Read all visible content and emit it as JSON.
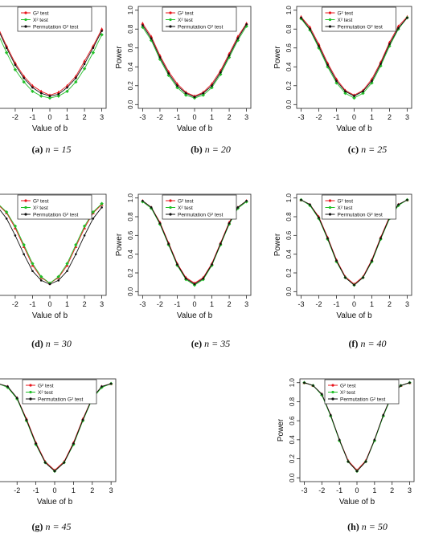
{
  "shared": {
    "xlabel": "Value of b",
    "ylabel": "Power",
    "xticks": [
      "-3",
      "-2",
      "-1",
      "0",
      "1",
      "2",
      "3"
    ],
    "yticks": [
      "0.0",
      "0.2",
      "0.4",
      "0.6",
      "0.8",
      "1.0"
    ],
    "legend": [
      "G² test",
      "X² test",
      "Permutation G² test"
    ],
    "colors": {
      "g2": "#e8141b",
      "x2": "#22c02a",
      "perm": "#111111"
    }
  },
  "chart_data": [
    {
      "type": "line",
      "caption_label": "(a)",
      "caption_n": "n = 15",
      "x": [
        -3,
        -2.5,
        -2,
        -1.5,
        -1,
        -0.5,
        0,
        0.5,
        1,
        1.5,
        2,
        2.5,
        3
      ],
      "series": [
        {
          "name": "G² test",
          "values": [
            0.82,
            0.62,
            0.44,
            0.3,
            0.2,
            0.14,
            0.1,
            0.13,
            0.2,
            0.3,
            0.46,
            0.62,
            0.8
          ]
        },
        {
          "name": "X² test",
          "values": [
            0.75,
            0.55,
            0.37,
            0.24,
            0.14,
            0.09,
            0.07,
            0.09,
            0.14,
            0.24,
            0.38,
            0.55,
            0.74
          ]
        },
        {
          "name": "Permutation G² test",
          "values": [
            0.8,
            0.6,
            0.42,
            0.28,
            0.18,
            0.12,
            0.09,
            0.11,
            0.18,
            0.28,
            0.43,
            0.6,
            0.78
          ]
        }
      ]
    },
    {
      "type": "line",
      "caption_label": "(b)",
      "caption_n": "n = 20",
      "x": [
        -3,
        -2.5,
        -2,
        -1.5,
        -1,
        -0.5,
        0,
        0.5,
        1,
        1.5,
        2,
        2.5,
        3
      ],
      "series": [
        {
          "name": "G² test",
          "values": [
            0.86,
            0.72,
            0.52,
            0.35,
            0.22,
            0.13,
            0.09,
            0.13,
            0.22,
            0.36,
            0.54,
            0.72,
            0.86
          ]
        },
        {
          "name": "X² test",
          "values": [
            0.82,
            0.68,
            0.48,
            0.31,
            0.18,
            0.1,
            0.07,
            0.1,
            0.18,
            0.32,
            0.5,
            0.68,
            0.83
          ]
        },
        {
          "name": "Permutation G² test",
          "values": [
            0.84,
            0.7,
            0.5,
            0.33,
            0.2,
            0.12,
            0.08,
            0.12,
            0.2,
            0.34,
            0.52,
            0.7,
            0.85
          ]
        }
      ]
    },
    {
      "type": "line",
      "caption_label": "(c)",
      "caption_n": "n = 25",
      "x": [
        -3,
        -2.5,
        -2,
        -1.5,
        -1,
        -0.5,
        0,
        0.5,
        1,
        1.5,
        2,
        2.5,
        3
      ],
      "series": [
        {
          "name": "G² test",
          "values": [
            0.93,
            0.82,
            0.64,
            0.44,
            0.27,
            0.15,
            0.1,
            0.15,
            0.27,
            0.45,
            0.66,
            0.83,
            0.93
          ]
        },
        {
          "name": "X² test",
          "values": [
            0.91,
            0.79,
            0.6,
            0.4,
            0.23,
            0.12,
            0.07,
            0.12,
            0.23,
            0.41,
            0.62,
            0.8,
            0.92
          ]
        },
        {
          "name": "Permutation G² test",
          "values": [
            0.92,
            0.8,
            0.62,
            0.42,
            0.25,
            0.14,
            0.09,
            0.14,
            0.25,
            0.43,
            0.64,
            0.81,
            0.92
          ]
        }
      ]
    },
    {
      "type": "line",
      "caption_label": "(d)",
      "caption_n": "n = 30",
      "x": [
        -3,
        -2.5,
        -2,
        -1.5,
        -1,
        -0.5,
        0,
        0.5,
        1,
        1.5,
        2,
        2.5,
        3
      ],
      "series": [
        {
          "name": "G² test",
          "values": [
            0.93,
            0.84,
            0.68,
            0.48,
            0.28,
            0.15,
            0.09,
            0.15,
            0.28,
            0.48,
            0.68,
            0.84,
            0.93
          ]
        },
        {
          "name": "X² test",
          "values": [
            0.94,
            0.85,
            0.7,
            0.5,
            0.3,
            0.16,
            0.09,
            0.16,
            0.3,
            0.5,
            0.7,
            0.85,
            0.94
          ]
        },
        {
          "name": "Permutation G² test",
          "values": [
            0.9,
            0.78,
            0.6,
            0.4,
            0.22,
            0.12,
            0.08,
            0.12,
            0.22,
            0.4,
            0.6,
            0.78,
            0.9
          ]
        }
      ]
    },
    {
      "type": "line",
      "caption_label": "(e)",
      "caption_n": "n = 35",
      "x": [
        -3,
        -2.5,
        -2,
        -1.5,
        -1,
        -0.5,
        0,
        0.5,
        1,
        1.5,
        2,
        2.5,
        3
      ],
      "series": [
        {
          "name": "G² test",
          "values": [
            0.97,
            0.9,
            0.74,
            0.52,
            0.3,
            0.15,
            0.09,
            0.15,
            0.3,
            0.52,
            0.74,
            0.9,
            0.97
          ]
        },
        {
          "name": "X² test",
          "values": [
            0.96,
            0.89,
            0.72,
            0.5,
            0.28,
            0.13,
            0.07,
            0.13,
            0.28,
            0.5,
            0.72,
            0.89,
            0.96
          ]
        },
        {
          "name": "Permutation G² test",
          "values": [
            0.97,
            0.9,
            0.73,
            0.51,
            0.29,
            0.14,
            0.08,
            0.14,
            0.29,
            0.51,
            0.73,
            0.9,
            0.97
          ]
        }
      ]
    },
    {
      "type": "line",
      "caption_label": "(f)",
      "caption_n": "n = 40",
      "x": [
        -3,
        -2.5,
        -2,
        -1.5,
        -1,
        -0.5,
        0,
        0.5,
        1,
        1.5,
        2,
        2.5,
        3
      ],
      "series": [
        {
          "name": "G² test",
          "values": [
            0.98,
            0.93,
            0.8,
            0.58,
            0.34,
            0.16,
            0.08,
            0.16,
            0.34,
            0.58,
            0.8,
            0.93,
            0.98
          ]
        },
        {
          "name": "X² test",
          "values": [
            0.98,
            0.92,
            0.78,
            0.56,
            0.32,
            0.15,
            0.07,
            0.15,
            0.32,
            0.56,
            0.78,
            0.92,
            0.98
          ]
        },
        {
          "name": "Permutation G² test",
          "values": [
            0.98,
            0.93,
            0.79,
            0.57,
            0.33,
            0.15,
            0.07,
            0.15,
            0.33,
            0.57,
            0.79,
            0.93,
            0.98
          ]
        }
      ]
    },
    {
      "type": "line",
      "caption_label": "(g)",
      "caption_n": "n = 45",
      "x": [
        -3,
        -2.5,
        -2,
        -1.5,
        -1,
        -0.5,
        0,
        0.5,
        1,
        1.5,
        2,
        2.5,
        3
      ],
      "series": [
        {
          "name": "G² test",
          "values": [
            0.99,
            0.96,
            0.84,
            0.62,
            0.37,
            0.17,
            0.08,
            0.17,
            0.37,
            0.62,
            0.84,
            0.96,
            0.99
          ]
        },
        {
          "name": "X² test",
          "values": [
            0.99,
            0.95,
            0.83,
            0.6,
            0.35,
            0.16,
            0.07,
            0.16,
            0.35,
            0.6,
            0.83,
            0.95,
            0.99
          ]
        },
        {
          "name": "Permutation G² test",
          "values": [
            0.99,
            0.96,
            0.84,
            0.61,
            0.36,
            0.16,
            0.07,
            0.16,
            0.36,
            0.61,
            0.84,
            0.96,
            0.99
          ]
        }
      ]
    },
    {
      "type": "line",
      "caption_label": "(h)",
      "caption_n": "n = 50",
      "x": [
        -3,
        -2.5,
        -2,
        -1.5,
        -1,
        -0.5,
        0,
        0.5,
        1,
        1.5,
        2,
        2.5,
        3
      ],
      "series": [
        {
          "name": "G² test",
          "values": [
            1.0,
            0.97,
            0.88,
            0.66,
            0.4,
            0.18,
            0.08,
            0.18,
            0.4,
            0.66,
            0.88,
            0.97,
            1.0
          ]
        },
        {
          "name": "X² test",
          "values": [
            1.0,
            0.97,
            0.87,
            0.65,
            0.39,
            0.17,
            0.07,
            0.17,
            0.39,
            0.65,
            0.87,
            0.97,
            1.0
          ]
        },
        {
          "name": "Permutation G² test",
          "values": [
            1.0,
            0.97,
            0.88,
            0.66,
            0.4,
            0.17,
            0.07,
            0.17,
            0.4,
            0.66,
            0.88,
            0.97,
            1.0
          ]
        }
      ]
    }
  ]
}
